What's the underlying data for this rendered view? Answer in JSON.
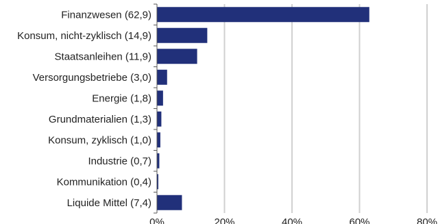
{
  "chart_data": {
    "type": "bar",
    "orientation": "horizontal",
    "categories": [
      "Finanzwesen (62,9)",
      "Konsum, nicht-zyklisch (14,9)",
      "Staatsanleihen (11,9)",
      "Versorgungsbetriebe (3,0)",
      "Energie (1,8)",
      "Grundmaterialien (1,3)",
      "Konsum, zyklisch (1,0)",
      "Industrie (0,7)",
      "Kommunikation (0,4)",
      "Liquide Mittel (7,4)"
    ],
    "values": [
      62.9,
      14.9,
      11.9,
      3.0,
      1.8,
      1.3,
      1.0,
      0.7,
      0.4,
      7.4
    ],
    "xlim": [
      0,
      80
    ],
    "xticks": [
      0,
      20,
      40,
      60,
      80
    ],
    "xtick_labels": [
      "0%",
      "20%",
      "40%",
      "60%",
      "80%"
    ],
    "bar_color": "#21307a",
    "grid": true,
    "grid_color": "#d0d0d0",
    "title": "",
    "xlabel": "",
    "ylabel": ""
  }
}
